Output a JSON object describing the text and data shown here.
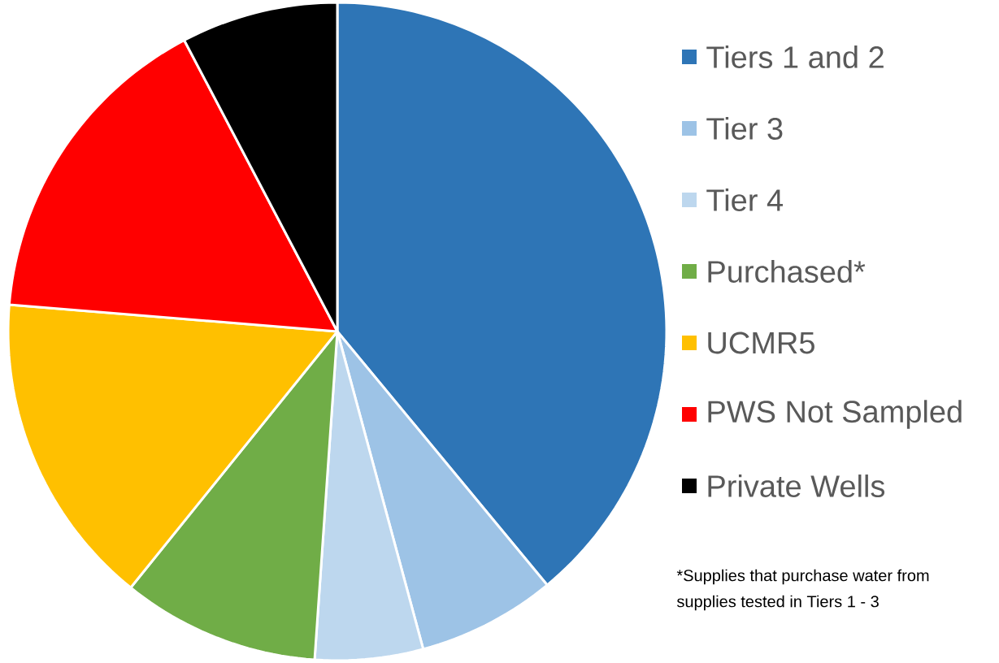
{
  "chart_data": {
    "type": "pie",
    "categories": [
      "Tiers 1 and 2",
      "Tier 3",
      "Tier 4",
      "Purchased*",
      "UCMR5",
      "PWS Not Sampled",
      "Private Wells"
    ],
    "values": [
      39,
      6.8,
      5.3,
      9.7,
      15.5,
      16,
      7.7
    ],
    "colors": [
      "#2e75b6",
      "#9dc3e6",
      "#bdd7ee",
      "#70ad47",
      "#ffc000",
      "#ff0000",
      "#000000"
    ],
    "legend": "right",
    "annotations": [
      "*Supplies that purchase water from",
      "supplies tested in Tiers 1 - 3"
    ]
  }
}
